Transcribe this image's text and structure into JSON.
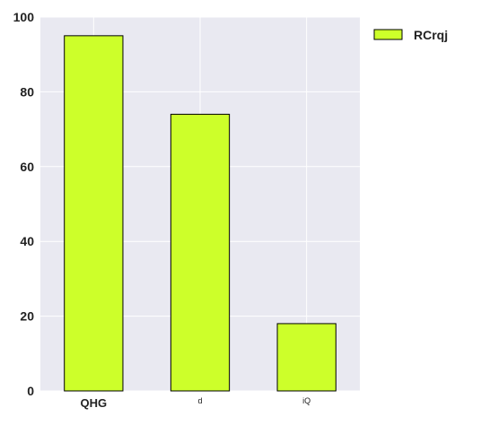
{
  "chart_data": {
    "type": "bar",
    "categories": [
      "QHG",
      "d",
      "iQ"
    ],
    "series": [
      {
        "name": "RCrqj",
        "values": [
          95,
          74,
          18
        ]
      }
    ],
    "ylim": [
      0,
      100
    ],
    "yticks": [
      "0",
      "20",
      "40",
      "60",
      "80",
      "100"
    ],
    "grid": true,
    "legend_position": "outside-top-right",
    "colors": {
      "bar": "#cdff2a",
      "bar_edge": "#000000",
      "plot_bg": "#e9e9f1",
      "grid": "#ffffff",
      "text": "#222222"
    }
  }
}
